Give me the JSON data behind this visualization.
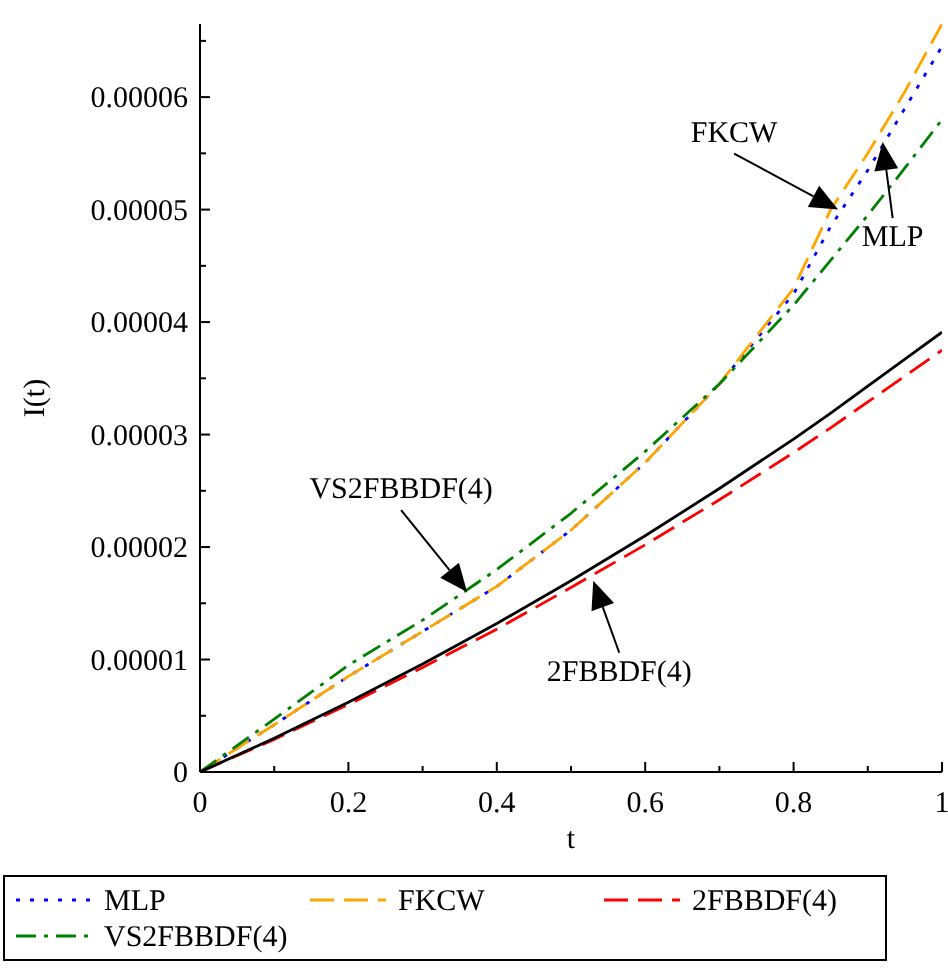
{
  "chart_data": {
    "type": "line",
    "xlabel": "t",
    "ylabel": "I(t)",
    "x": [
      0,
      0.1,
      0.2,
      0.3,
      0.4,
      0.5,
      0.6,
      0.7,
      0.8,
      0.85,
      0.9,
      0.95,
      1
    ],
    "xlim": [
      0,
      1
    ],
    "ylim": [
      0,
      6.65e-05
    ],
    "xticks": [
      0,
      {
        "value": 0.1,
        "label": null
      },
      0.2,
      {
        "value": 0.3,
        "label": null
      },
      0.4,
      {
        "value": 0.5,
        "label": null
      },
      0.6,
      {
        "value": 0.7,
        "label": null
      },
      0.8,
      {
        "value": 0.9,
        "label": null
      },
      1
    ],
    "yticks": [
      0,
      {
        "value": 5e-06,
        "label": null
      },
      {
        "value": 1e-05,
        "label": "0.00001"
      },
      {
        "value": 1.5e-05,
        "label": null
      },
      {
        "value": 2e-05,
        "label": "0.00002"
      },
      {
        "value": 2.5e-05,
        "label": null
      },
      {
        "value": 3e-05,
        "label": "0.00003"
      },
      {
        "value": 3.5e-05,
        "label": null
      },
      {
        "value": 4e-05,
        "label": "0.00004"
      },
      {
        "value": 4.5e-05,
        "label": null
      },
      {
        "value": 5e-05,
        "label": "0.00005"
      },
      {
        "value": 5.5e-05,
        "label": null
      },
      {
        "value": 6e-05,
        "label": "0.00006"
      },
      {
        "value": 6.5e-05,
        "label": null
      }
    ],
    "series": [
      {
        "name": "MLP",
        "color": "#0000ff",
        "line_style": "dotted",
        "values": [
          0,
          4.2e-06,
          8.5e-06,
          1.25e-05,
          1.65e-05,
          2.15e-05,
          2.75e-05,
          3.45e-05,
          4.25e-05,
          4.85e-05,
          5.35e-05,
          5.9e-05,
          6.45e-05
        ]
      },
      {
        "name": "FKCW",
        "color": "#ffa500",
        "line_style": "dashed",
        "values": [
          0,
          4.2e-06,
          8.5e-06,
          1.25e-05,
          1.65e-05,
          2.15e-05,
          2.75e-05,
          3.45e-05,
          4.3e-05,
          5e-05,
          5.5e-05,
          6.05e-05,
          6.65e-05
        ]
      },
      {
        "name": "2FBBDF(4)",
        "color": "#ff0000",
        "line_style": "dashed",
        "values": [
          0,
          2.9e-06,
          6e-06,
          9.3e-06,
          1.27e-05,
          1.64e-05,
          2.02e-05,
          2.42e-05,
          2.84e-05,
          3.06e-05,
          3.29e-05,
          3.52e-05,
          3.75e-05
        ]
      },
      {
        "name": "VS2FBBDF(4)",
        "color": "#008000",
        "line_style": "dashdot",
        "values": [
          0,
          4.7e-06,
          9.5e-06,
          1.35e-05,
          1.8e-05,
          2.3e-05,
          2.85e-05,
          3.45e-05,
          4.15e-05,
          4.55e-05,
          4.95e-05,
          5.37e-05,
          5.8e-05
        ]
      },
      {
        "color": "#000000",
        "line_style": "solid",
        "values": [
          0,
          3e-06,
          6.2e-06,
          9.6e-06,
          1.32e-05,
          1.7e-05,
          2.1e-05,
          2.52e-05,
          2.96e-05,
          3.19e-05,
          3.43e-05,
          3.67e-05,
          3.91e-05
        ]
      }
    ],
    "annotations": [
      {
        "text": "FKCW",
        "x": 0.86,
        "y": 5e-05
      },
      {
        "text": "MLP",
        "x": 0.92,
        "y": 5.6e-05
      },
      {
        "text": "VS2FBBDF(4)",
        "x": 0.36,
        "y": 1.6e-05
      },
      {
        "text": "2FBBDF(4)",
        "x": 0.53,
        "y": 1.7e-05
      }
    ],
    "legend": "bottom"
  }
}
